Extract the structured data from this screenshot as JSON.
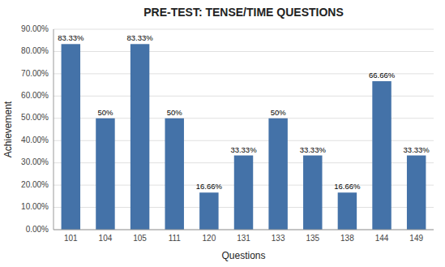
{
  "chart_data": {
    "type": "bar",
    "title": "PRE-TEST: TENSE/TIME QUESTIONS",
    "xlabel": "Questions",
    "ylabel": "Achievement",
    "categories": [
      "101",
      "104",
      "105",
      "111",
      "120",
      "131",
      "133",
      "135",
      "138",
      "144",
      "149"
    ],
    "values": [
      83.33,
      50.0,
      83.33,
      50.0,
      16.66,
      33.33,
      50.0,
      33.33,
      16.66,
      66.66,
      33.33
    ],
    "value_labels": [
      "83.33%",
      "50%",
      "83.33%",
      "50%",
      "16.66%",
      "33.33%",
      "50%",
      "33.33%",
      "16.66%",
      "66.66%",
      "33.33%"
    ],
    "data_labels": true,
    "color": "#4472a8",
    "ylim": [
      0,
      90
    ],
    "yticks": [
      {
        "value": 0,
        "label": "0.00%"
      },
      {
        "value": 10,
        "label": "10.00%"
      },
      {
        "value": 20,
        "label": "20.00%"
      },
      {
        "value": 30,
        "label": "30.00%"
      },
      {
        "value": 40,
        "label": "40.00%"
      },
      {
        "value": 50,
        "label": "50.00%"
      },
      {
        "value": 60,
        "label": "60.00%"
      },
      {
        "value": 70,
        "label": "70.00%"
      },
      {
        "value": 80,
        "label": "80.00%"
      },
      {
        "value": 90,
        "label": "90.00%"
      }
    ],
    "grid": true
  }
}
